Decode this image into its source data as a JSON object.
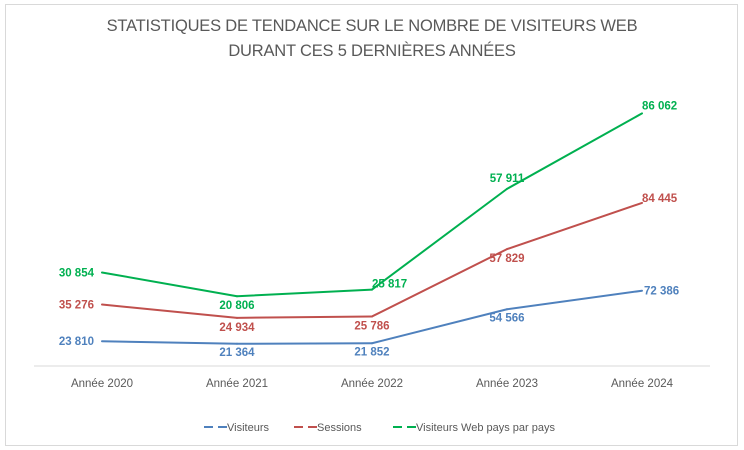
{
  "chart_data": {
    "type": "line",
    "stacked": true,
    "title": "STATISTIQUES DE TENDANCE SUR LE NOMBRE DE VISITEURS WEB DURANT CES 5 DERNIÈRES ANNÉES",
    "title_lines": [
      "STATISTIQUES DE TENDANCE SUR LE NOMBRE DE VISITEURS WEB",
      "DURANT CES 5 DERNIÈRES ANNÉES"
    ],
    "xlabel": "",
    "ylabel": "",
    "grid": false,
    "legend_position": "bottom",
    "categories": [
      "Année 2020",
      "Année 2021",
      "Année 2022",
      "Année 2023",
      "Année 2024"
    ],
    "series": [
      {
        "name": "Visiteurs",
        "color": "#4F81BD",
        "values": [
          23810,
          21364,
          21852,
          54566,
          72386
        ],
        "labels": [
          "23 810",
          "21 364",
          "21 852",
          "54 566",
          "72 386"
        ]
      },
      {
        "name": "Sessions",
        "color": "#C0504D",
        "values": [
          35276,
          24934,
          25786,
          57829,
          84445
        ],
        "labels": [
          "35 276",
          "24 934",
          "25 786",
          "57 829",
          "84 445"
        ]
      },
      {
        "name": "Visiteurs Web pays par pays",
        "color": "#00B050",
        "values": [
          30854,
          20806,
          25817,
          57911,
          86062
        ],
        "labels": [
          "30 854",
          "20 806",
          "25 817",
          "57 911",
          "86 062"
        ]
      }
    ],
    "ylim": [
      0,
      250000
    ]
  }
}
